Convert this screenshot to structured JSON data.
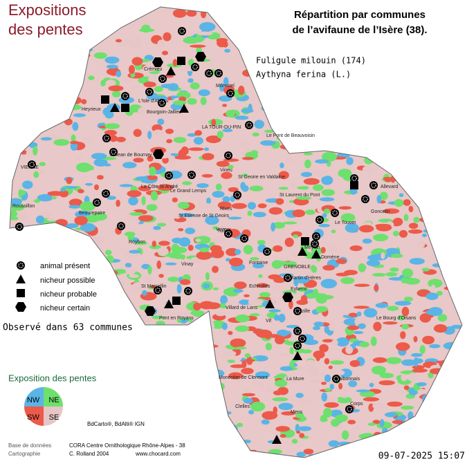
{
  "title": {
    "line1": "Expositions",
    "line2": "des pentes"
  },
  "heading": {
    "line1": "Répartition par communes",
    "line2": "de l’avifaune de l’Isère (38)."
  },
  "species": {
    "common": "Fuligule milouin  (174)",
    "latin": "Aythyna ferina (L.)"
  },
  "legend": {
    "present": "animal présent",
    "possible": "nicheur possible",
    "probable": "nicheur probable",
    "certain": "nicheur certain"
  },
  "observed": "Observé dans 63 communes",
  "exposition": {
    "title": "Exposition des pentes",
    "nw": "NW",
    "ne": "NE",
    "sw": "SW",
    "se": "SE"
  },
  "credits": {
    "sources": "BdCarto®, BdAlti® IGN",
    "db_label": "Base de données",
    "db": "CORA Centre Ornithologique Rhône-Alpes - 38",
    "carto_label": "Cartographie",
    "carto": "C. Rolland 2004",
    "url": "www.chocard.com",
    "date": "09-07-2025 15:07"
  },
  "places": [
    "Crémieu",
    "Morestel",
    "L'Isle d'Abeau",
    "Bourgoin-Jallieu",
    "LA TOUR-DU-PIN",
    "Le Pont de Beauvoisin",
    "VIENNE",
    "St Jean de Bournay",
    "Virieu",
    "St Geoire en Valdaine",
    "La Côte St André",
    "Le Grand Lemps",
    "St Etienne de St Geoirs",
    "Roussillon",
    "Beaurepaire",
    "Rives",
    "Voiron",
    "Roybon",
    "Tullins",
    "Vinay",
    "St Marcellin",
    "Pont en Royans",
    "St Laurent du Pont",
    "Le Touvet",
    "Allevard",
    "Goncelin",
    "Domène",
    "Meylan",
    "GRENOBLE",
    "Fontaine",
    "Echirolles",
    "Eybens",
    "St Martin d'Hères",
    "Villard de Lans",
    "Vif",
    "Vizille",
    "Le Bourg d'Oisans",
    "Monestier de Clermont",
    "La Mure",
    "Valbonnais",
    "Corps",
    "Clelles",
    "Mens",
    "Heyrieux"
  ]
}
